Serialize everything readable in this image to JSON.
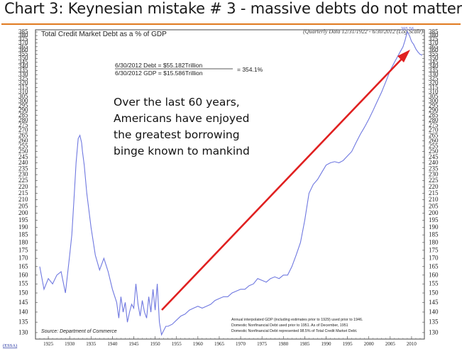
{
  "slide": {
    "title": "Chart 3: Keynesian mistake # 3 - massive debts do not matter"
  },
  "chart_header": {
    "title": "Total Credit Market Debt as a % of GDP",
    "period_note": "(Quarterly Data 12/31/1922 - 6/30/2012 (Log Scale)"
  },
  "formula": {
    "debt_line": "6/30/2012  Debt  =   $55.182Trillion",
    "gdp_line": "6/30/2012  GDP  =  $15.586Trillion",
    "result": "=  354.1%"
  },
  "annotation": {
    "lines": [
      "Over the last 60 years,",
      "Americans have enjoyed",
      "the greatest borrowing",
      "binge known to mankind"
    ]
  },
  "peak_label": "385.56",
  "source": "Source: Department of Commerce",
  "footnotes": [
    "Annual interpolated GDP (including estimates prior to 1929) used prior to 1946.",
    "Domestic Nonfinancial Debt used prior to 1951. As of December, 1951",
    "Domestic Nonfinancial Debt represented 98.5% of Total Credit Market Debt."
  ],
  "logo": "(ESSA)",
  "colors": {
    "series": "#6f78e0",
    "arrow": "#e02020",
    "rule": "#e07a1f"
  },
  "chart_data": {
    "type": "line",
    "title": "Total Credit Market Debt as a % of GDP",
    "scale": "log",
    "xlim": [
      1922,
      2013
    ],
    "ylim": [
      127,
      388
    ],
    "y_ticks": [
      130,
      135,
      140,
      145,
      150,
      155,
      160,
      165,
      170,
      175,
      180,
      185,
      190,
      195,
      200,
      205,
      210,
      215,
      220,
      225,
      230,
      235,
      240,
      245,
      250,
      255,
      260,
      265,
      270,
      275,
      280,
      285,
      290,
      295,
      300,
      305,
      310,
      315,
      320,
      325,
      330,
      335,
      340,
      345,
      350,
      355,
      360,
      365,
      370,
      375,
      380,
      385
    ],
    "x_ticks": [
      1925,
      1930,
      1935,
      1940,
      1945,
      1950,
      1955,
      1960,
      1965,
      1970,
      1975,
      1980,
      1985,
      1990,
      1995,
      2000,
      2005,
      2010
    ],
    "series": [
      {
        "x": [
          1923,
          1924,
          1925,
          1926,
          1927,
          1928,
          1929,
          1930,
          1930.5,
          1931,
          1931.5,
          1932,
          1932.4,
          1932.8,
          1933,
          1933.4,
          1934,
          1935,
          1936,
          1937,
          1938,
          1939,
          1940,
          1941,
          1941.5,
          1942,
          1942.5,
          1943,
          1943.5,
          1944,
          1944.5,
          1945,
          1945.5,
          1946,
          1946.5,
          1947,
          1947.5,
          1948,
          1948.5,
          1949,
          1949.5,
          1950,
          1950.5,
          1951,
          1951.5,
          1952,
          1952.5,
          1953,
          1954,
          1955,
          1956,
          1957,
          1958,
          1959,
          1960,
          1961,
          1962,
          1963,
          1964,
          1965,
          1966,
          1967,
          1968,
          1969,
          1970,
          1971,
          1972,
          1973,
          1974,
          1975,
          1976,
          1977,
          1978,
          1979,
          1980,
          1981,
          1982,
          1983,
          1984,
          1985,
          1986,
          1987,
          1988,
          1989,
          1990,
          1991,
          1992,
          1993,
          1994,
          1995,
          1996,
          1997,
          1998,
          1999,
          2000,
          2001,
          2002,
          2003,
          2004,
          2005,
          2006,
          2007,
          2008,
          2008.5,
          2009,
          2009.5,
          2010,
          2010.5,
          2011,
          2011.5,
          2012,
          2012.5
        ],
        "y": [
          165,
          152,
          158,
          155,
          160,
          162,
          150,
          172,
          185,
          210,
          240,
          262,
          265,
          258,
          250,
          238,
          215,
          190,
          172,
          163,
          170,
          162,
          152,
          145,
          137,
          148,
          140,
          145,
          135,
          140,
          144,
          142,
          155,
          144,
          138,
          146,
          140,
          137,
          148,
          140,
          152,
          141,
          155,
          135,
          129,
          131,
          133,
          133,
          134,
          136,
          138,
          139,
          141,
          142,
          143,
          142,
          143,
          144,
          146,
          147,
          148,
          148,
          150,
          151,
          152,
          152,
          154,
          155,
          158,
          157,
          156,
          158,
          159,
          158,
          160,
          160,
          165,
          172,
          180,
          195,
          215,
          222,
          226,
          232,
          238,
          240,
          241,
          240,
          242,
          246,
          250,
          258,
          266,
          273,
          281,
          290,
          300,
          310,
          322,
          335,
          345,
          355,
          365,
          374,
          385.56,
          380,
          372,
          368,
          362,
          358,
          355,
          354.1
        ]
      }
    ]
  }
}
